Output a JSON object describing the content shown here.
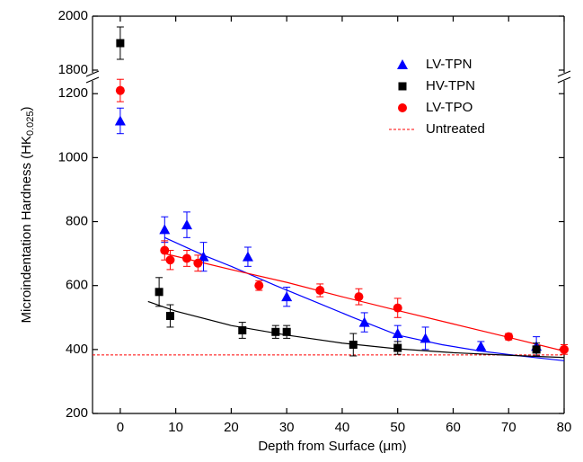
{
  "chart_data": {
    "type": "scatter",
    "x_label": "Depth from Surface (μm)",
    "y_label": "Microindentation Hardness (HK",
    "y_label_sub": "0.025",
    "y_label_end": ")",
    "xlim": [
      -5,
      80
    ],
    "xticks": [
      0,
      10,
      20,
      30,
      40,
      50,
      60,
      70,
      80
    ],
    "ylim": [
      200,
      2000
    ],
    "ybreak": [
      1240,
      1790
    ],
    "yticks": [
      200,
      400,
      600,
      800,
      1000,
      1200,
      1800,
      2000
    ],
    "legend": "upper right",
    "series": [
      {
        "name": "LV-TPN",
        "color": "#0000ff",
        "marker": "triangle",
        "x": [
          0,
          8,
          12,
          15,
          23,
          30,
          44,
          50,
          55,
          65,
          75
        ],
        "values": [
          1115,
          775,
          790,
          690,
          690,
          565,
          485,
          450,
          435,
          410,
          410
        ],
        "errors": [
          40,
          40,
          40,
          45,
          30,
          30,
          30,
          25,
          35,
          15,
          30
        ]
      },
      {
        "name": "HV-TPN",
        "color": "#000000",
        "marker": "square",
        "x": [
          0,
          7,
          9,
          22,
          28,
          30,
          42,
          50,
          75
        ],
        "values": [
          1900,
          580,
          505,
          460,
          455,
          455,
          415,
          405,
          400
        ],
        "errors": [
          60,
          45,
          35,
          25,
          20,
          20,
          35,
          20,
          20
        ]
      },
      {
        "name": "LV-TPO",
        "color": "#ff0000",
        "marker": "circle",
        "x": [
          0,
          8,
          9,
          12,
          14,
          25,
          36,
          43,
          50,
          70,
          80
        ],
        "values": [
          1210,
          710,
          680,
          685,
          670,
          600,
          585,
          565,
          530,
          440,
          400
        ],
        "errors": [
          35,
          30,
          30,
          25,
          25,
          15,
          20,
          25,
          30,
          10,
          15
        ]
      }
    ],
    "fits": [
      {
        "color": "#0000ff",
        "x": [
          8,
          15,
          20,
          28,
          35,
          42,
          50,
          58,
          65,
          72,
          80
        ],
        "values": [
          750,
          695,
          660,
          600,
          550,
          500,
          445,
          415,
          395,
          380,
          365
        ]
      },
      {
        "color": "#000000",
        "x": [
          5,
          10,
          20,
          30,
          40,
          50,
          60,
          70,
          80
        ],
        "values": [
          550,
          520,
          475,
          445,
          420,
          402,
          390,
          382,
          375
        ]
      },
      {
        "color": "#ff0000",
        "x": [
          8,
          20,
          30,
          40,
          50,
          60,
          70,
          80
        ],
        "values": [
          700,
          650,
          610,
          565,
          522,
          480,
          438,
          395
        ]
      }
    ],
    "reference_line": {
      "name": "Untreated",
      "value": 383,
      "color": "#ff0000"
    }
  }
}
